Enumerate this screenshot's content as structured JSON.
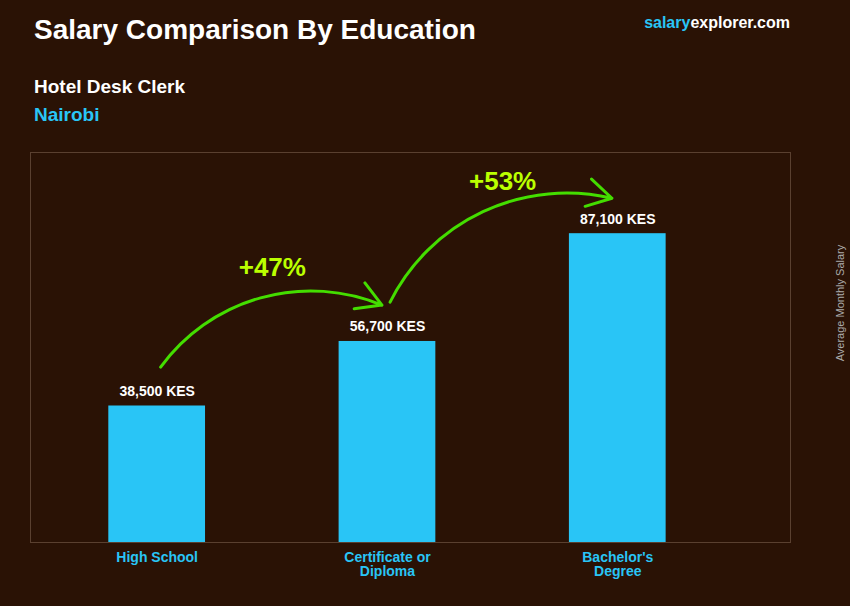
{
  "chart_data": {
    "type": "bar",
    "title": "Salary Comparison By Education",
    "subtitle": [
      "Hotel Desk Clerk",
      "Nairobi"
    ],
    "source": [
      "salary",
      "explorer.com"
    ],
    "y_label": "Average Monthly Salary",
    "categories": [
      "High School",
      "Certificate or\nDiploma",
      "Bachelor's\nDegree"
    ],
    "values": [
      38500,
      56700,
      87100
    ],
    "value_labels": [
      "38,500 KES",
      "56,700 KES",
      "87,100 KES"
    ],
    "data_labels": true,
    "annotations": [
      "+47%",
      "+53%"
    ],
    "color": "#29c5f6",
    "ylim": [
      0,
      110000
    ],
    "tick_labels": "x"
  }
}
